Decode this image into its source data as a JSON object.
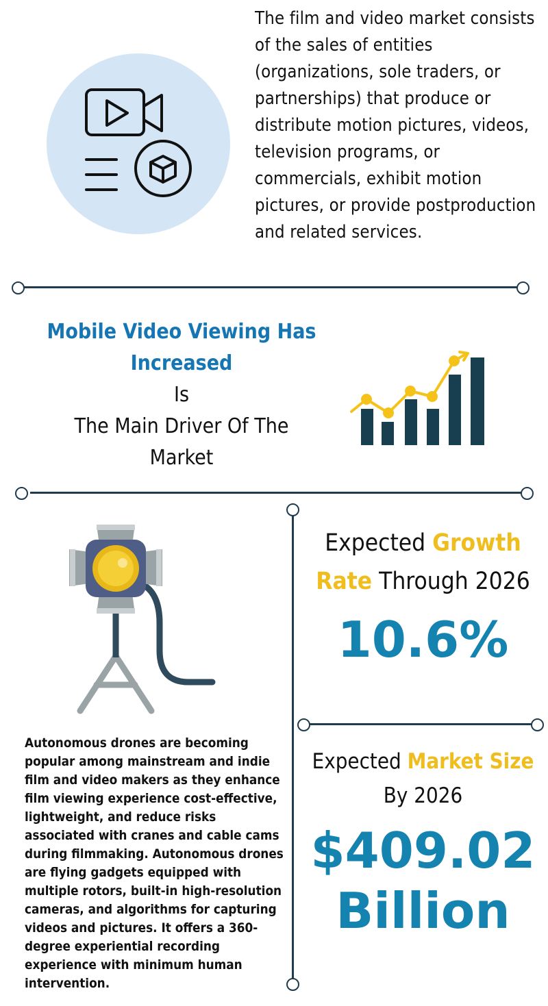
{
  "intro": {
    "text": "The film and video market consists of the sales of entities (organizations, sole traders, or partnerships) that produce or distribute motion pictures, videos, television programs, or commercials, exhibit motion pictures, or provide postproduction and related services.",
    "icon": "video-camera-document-icon"
  },
  "driver": {
    "title": "Mobile Video Viewing Has Increased",
    "line1": "Is",
    "line2": "The Main Driver Of The Market",
    "icon": "growth-chart-icon",
    "colors": {
      "bars": "#173f50",
      "trend": "#f5c21a"
    }
  },
  "growth": {
    "prefix": "Expected ",
    "highlight": "Growth Rate",
    "suffix": " Through 2026",
    "value": "10.6%"
  },
  "market_size": {
    "prefix": "Expected ",
    "highlight": "Market Size",
    "suffix": "By 2026",
    "value_line1": "$409.02",
    "value_line2": "Billion"
  },
  "drones": {
    "icon": "stage-spotlight-icon",
    "text": "Autonomous drones are becoming popular among mainstream and indie film and video makers as they enhance film viewing experience cost-effective, lightweight, and reduce risks associated with cranes and cable cams during filmmaking. Autonomous drones are flying gadgets equipped with multiple rotors, built-in high-resolution cameras, and algorithms for capturing videos and pictures. It offers a 360-degree experiential recording experience with minimum human intervention."
  },
  "colors": {
    "accent_blue": "#1483b0",
    "title_blue": "#1676b4",
    "highlight_yellow": "#f0bd1f",
    "line_navy": "#1f3b4d",
    "circle_bg": "#d4e6f5"
  }
}
